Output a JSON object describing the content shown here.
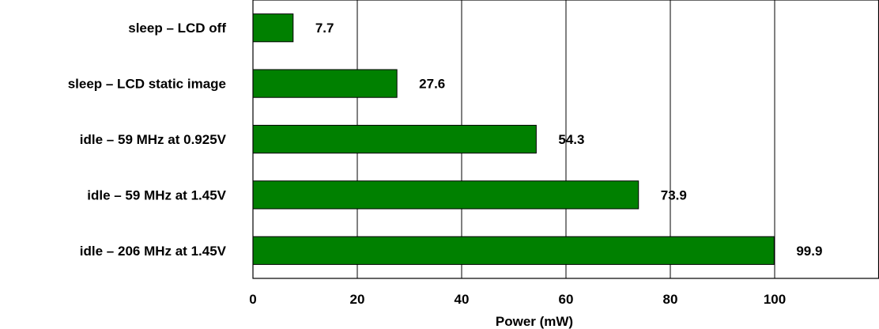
{
  "chart_data": {
    "type": "bar",
    "orientation": "horizontal",
    "categories": [
      "sleep – LCD off",
      "sleep – LCD static image",
      "idle – 59 MHz at 0.925V",
      "idle – 59 MHz at 1.45V",
      "idle – 206 MHz at 1.45V"
    ],
    "values": [
      7.7,
      27.6,
      54.3,
      73.9,
      99.9
    ],
    "value_labels": [
      "7.7",
      "27.6",
      "54.3",
      "73.9",
      "99.9"
    ],
    "xlabel": "Power (mW)",
    "ylabel": "",
    "title": "",
    "xlim": [
      0,
      120
    ],
    "xticks": [
      0,
      20,
      40,
      60,
      80,
      100
    ],
    "xtick_labels": [
      "0",
      "20",
      "40",
      "60",
      "80",
      "100"
    ],
    "grid": "vertical",
    "legend": "none",
    "bar_color": "#008000"
  }
}
